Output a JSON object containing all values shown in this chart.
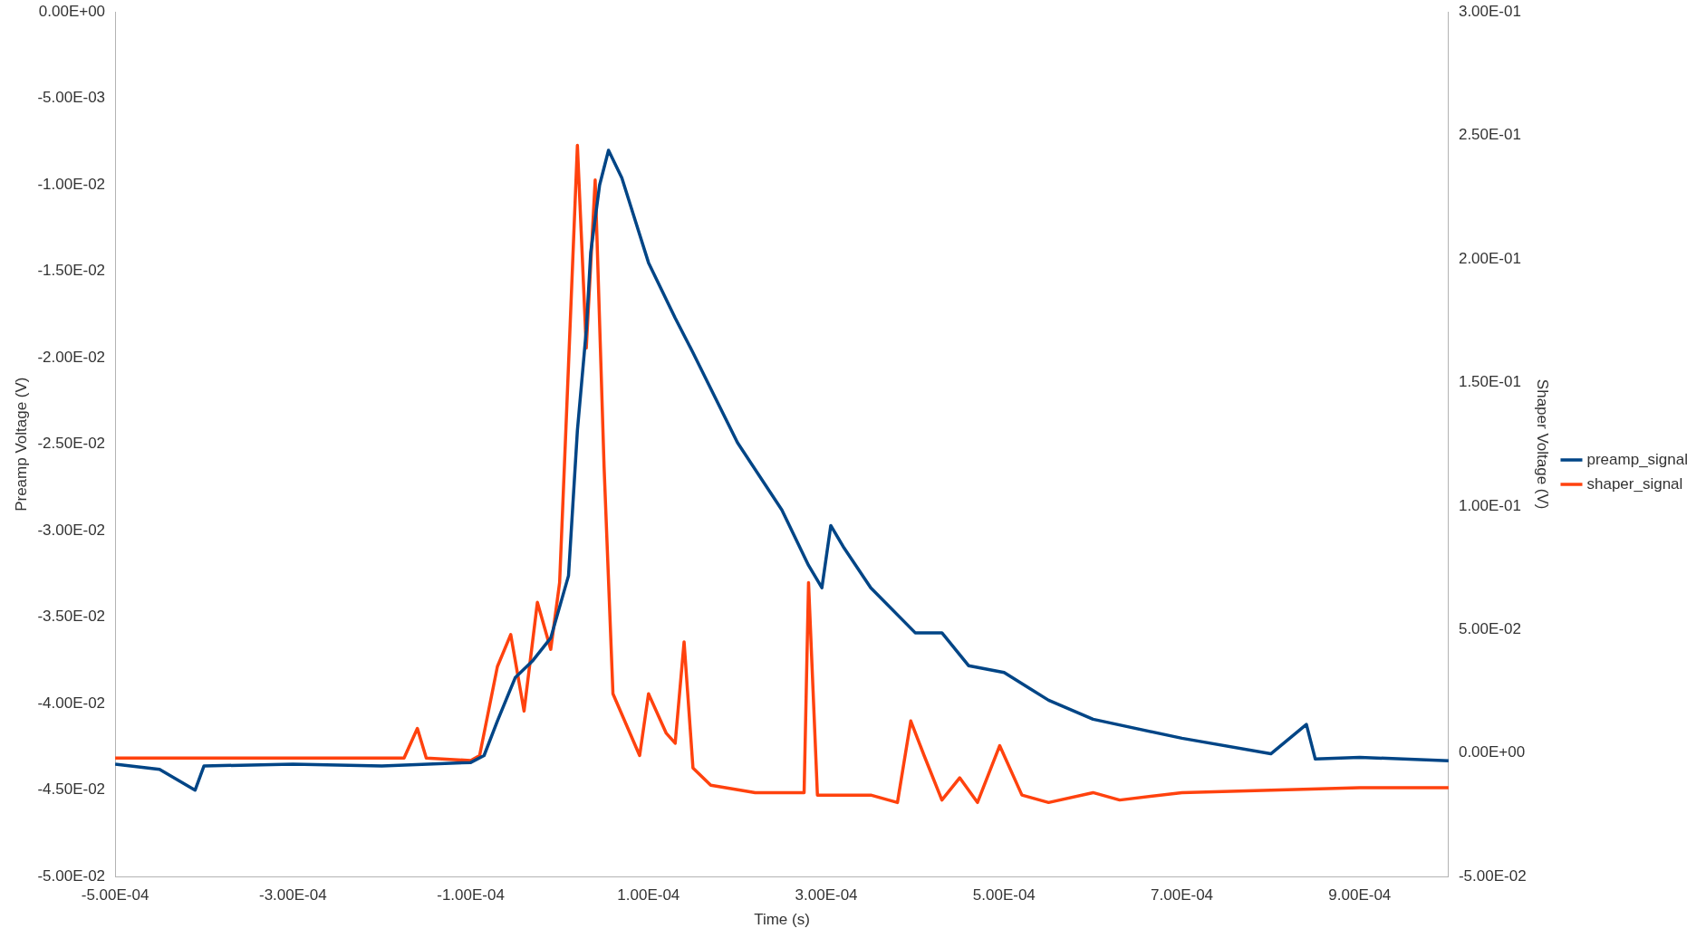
{
  "chart_data": {
    "type": "line",
    "xlabel": "Time (s)",
    "ylabel": "Preamp Voltage (V)",
    "y2label": "Shaper Voltage (V)",
    "legend": "right",
    "marker": "none",
    "line_style": "solid",
    "xlim": [
      -0.0005,
      0.001
    ],
    "xticks": [
      {
        "value": -0.0005,
        "label": "-5.00E-04"
      },
      {
        "value": -0.0003,
        "label": "-3.00E-04"
      },
      {
        "value": -0.0001,
        "label": "-1.00E-04"
      },
      {
        "value": 0.0001,
        "label": "1.00E-04"
      },
      {
        "value": 0.0003,
        "label": "3.00E-04"
      },
      {
        "value": 0.0005,
        "label": "5.00E-04"
      },
      {
        "value": 0.0007,
        "label": "7.00E-04"
      },
      {
        "value": 0.0009,
        "label": "9.00E-04"
      }
    ],
    "ylim": [
      -0.05,
      0
    ],
    "yticks": [
      {
        "value": 0,
        "label": "0.00E+00"
      },
      {
        "value": -0.005,
        "label": "-5.00E-03"
      },
      {
        "value": -0.01,
        "label": "-1.00E-02"
      },
      {
        "value": -0.015,
        "label": "-1.50E-02"
      },
      {
        "value": -0.02,
        "label": "-2.00E-02"
      },
      {
        "value": -0.025,
        "label": "-2.50E-02"
      },
      {
        "value": -0.03,
        "label": "-3.00E-02"
      },
      {
        "value": -0.035,
        "label": "-3.50E-02"
      },
      {
        "value": -0.04,
        "label": "-4.00E-02"
      },
      {
        "value": -0.045,
        "label": "-4.50E-02"
      },
      {
        "value": -0.05,
        "label": "-5.00E-02"
      }
    ],
    "y2lim": [
      -0.05,
      0.3
    ],
    "y2ticks": [
      {
        "value": 0.3,
        "label": "3.00E-01"
      },
      {
        "value": 0.25,
        "label": "2.50E-01"
      },
      {
        "value": 0.2,
        "label": "2.00E-01"
      },
      {
        "value": 0.15,
        "label": "1.50E-01"
      },
      {
        "value": 0.1,
        "label": "1.00E-01"
      },
      {
        "value": 0.05,
        "label": "5.00E-02"
      },
      {
        "value": 0,
        "label": "0.00E+00"
      },
      {
        "value": -0.05,
        "label": "-5.00E-02"
      }
    ],
    "series": [
      {
        "name": "preamp_signal",
        "color": "#004586",
        "x": [
          -0.0005,
          -0.00045,
          -0.00041,
          -0.0004,
          -0.0003,
          -0.0002,
          -0.0001,
          -8.5e-05,
          -7e-05,
          -5e-05,
          -3e-05,
          -1e-05,
          1e-05,
          2e-05,
          3e-05,
          3.5e-05,
          4.5e-05,
          5.5e-05,
          7e-05,
          0.0001,
          0.00013,
          0.00015,
          0.0002,
          0.00025,
          0.00028,
          0.000295,
          0.000305,
          0.00032,
          0.00035,
          0.0004,
          0.00043,
          0.00046,
          0.0005,
          0.00055,
          0.0006,
          0.0007,
          0.0008,
          0.00084,
          0.00085,
          0.0009,
          0.001
        ],
        "values": [
          -0.0435,
          -0.0438,
          -0.045,
          -0.0436,
          -0.0435,
          -0.0436,
          -0.0434,
          -0.043,
          -0.041,
          -0.0385,
          -0.0375,
          -0.0362,
          -0.0326,
          -0.0242,
          -0.0184,
          -0.0139,
          -0.01,
          -0.008,
          -0.0096,
          -0.0145,
          -0.0177,
          -0.0197,
          -0.0249,
          -0.0288,
          -0.032,
          -0.0333,
          -0.0297,
          -0.031,
          -0.0333,
          -0.0359,
          -0.0359,
          -0.0378,
          -0.0382,
          -0.0398,
          -0.0409,
          -0.042,
          -0.0429,
          -0.0412,
          -0.0432,
          -0.0431,
          -0.0433
        ]
      },
      {
        "name": "shaper_signal",
        "color": "#ff420e",
        "axis": "y2",
        "x": [
          -0.0005,
          -0.000175,
          -0.00016,
          -0.00015,
          -0.0001,
          -9e-05,
          -7e-05,
          -5.5e-05,
          -4e-05,
          -2.5e-05,
          -1e-05,
          0.0,
          1e-05,
          2e-05,
          3e-05,
          4e-05,
          5e-05,
          6e-05,
          9e-05,
          0.0001,
          0.00012,
          0.00013,
          0.00014,
          0.00015,
          0.00017,
          0.00022,
          0.000275,
          0.00028,
          0.00029,
          0.00035,
          0.00038,
          0.000395,
          0.00041,
          0.00043,
          0.00045,
          0.00047,
          0.000495,
          0.00052,
          0.00055,
          0.0006,
          0.00063,
          0.0007,
          0.0008,
          0.0009,
          0.001
        ],
        "values": [
          -0.002,
          -0.002,
          0.01,
          -0.002,
          -0.003,
          -0.001,
          0.035,
          0.048,
          0.017,
          0.061,
          0.042,
          0.069,
          0.157,
          0.246,
          0.164,
          0.232,
          0.116,
          0.024,
          -0.001,
          0.024,
          0.008,
          0.004,
          0.045,
          -0.006,
          -0.013,
          -0.016,
          -0.016,
          0.069,
          -0.017,
          -0.017,
          -0.02,
          0.013,
          -0.001,
          -0.019,
          -0.01,
          -0.02,
          0.003,
          -0.017,
          -0.02,
          -0.016,
          -0.019,
          -0.016,
          -0.015,
          -0.014,
          -0.014
        ]
      }
    ]
  }
}
